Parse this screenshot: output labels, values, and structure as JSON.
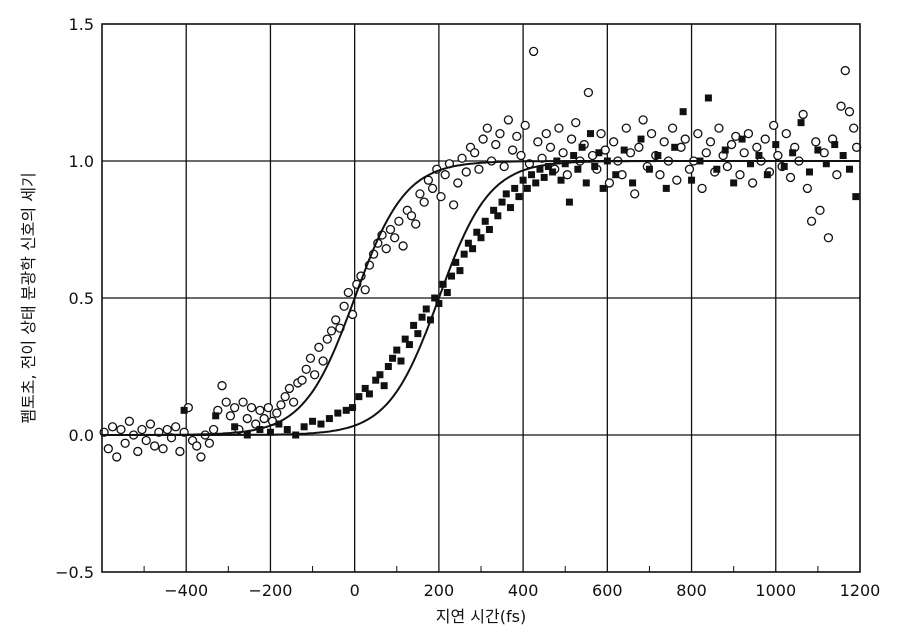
{
  "chart_data": {
    "type": "scatter",
    "title": "",
    "xlabel": "지연 시간(fs)",
    "ylabel": "펨토초, 전이 상태 분광학 신호의 세기",
    "xlim": [
      -600,
      1200
    ],
    "ylim": [
      -0.5,
      1.5
    ],
    "x_ticks": [
      -400,
      -200,
      0,
      200,
      400,
      600,
      800,
      1000,
      1200
    ],
    "y_ticks": [
      -0.5,
      0.0,
      0.5,
      1.0,
      1.5
    ],
    "x_tick_labels": [
      "−400",
      "−200",
      "0",
      "200",
      "400",
      "600",
      "800",
      "1000",
      "1200"
    ],
    "y_tick_labels": [
      "−0.5",
      "0.0",
      "0.5",
      "1.0",
      "1.5"
    ],
    "grid": true,
    "legend": "none",
    "series": [
      {
        "marker": "open-circle",
        "points": [
          [
            -595,
            0.01
          ],
          [
            -585,
            -0.05
          ],
          [
            -575,
            0.03
          ],
          [
            -565,
            -0.08
          ],
          [
            -555,
            0.02
          ],
          [
            -545,
            -0.03
          ],
          [
            -535,
            0.05
          ],
          [
            -525,
            0.0
          ],
          [
            -515,
            -0.06
          ],
          [
            -505,
            0.02
          ],
          [
            -495,
            -0.02
          ],
          [
            -485,
            0.04
          ],
          [
            -475,
            -0.04
          ],
          [
            -465,
            0.01
          ],
          [
            -455,
            -0.05
          ],
          [
            -445,
            0.02
          ],
          [
            -435,
            -0.01
          ],
          [
            -425,
            0.03
          ],
          [
            -415,
            -0.06
          ],
          [
            -405,
            0.01
          ],
          [
            -395,
            0.1
          ],
          [
            -385,
            -0.02
          ],
          [
            -375,
            -0.04
          ],
          [
            -365,
            -0.08
          ],
          [
            -355,
            0.0
          ],
          [
            -345,
            -0.03
          ],
          [
            -335,
            0.02
          ],
          [
            -325,
            0.09
          ],
          [
            -315,
            0.18
          ],
          [
            -305,
            0.12
          ],
          [
            -295,
            0.07
          ],
          [
            -285,
            0.1
          ],
          [
            -275,
            0.02
          ],
          [
            -265,
            0.12
          ],
          [
            -255,
            0.06
          ],
          [
            -245,
            0.1
          ],
          [
            -235,
            0.04
          ],
          [
            -225,
            0.09
          ],
          [
            -215,
            0.06
          ],
          [
            -205,
            0.1
          ],
          [
            -195,
            0.05
          ],
          [
            -185,
            0.08
          ],
          [
            -175,
            0.11
          ],
          [
            -165,
            0.14
          ],
          [
            -155,
            0.17
          ],
          [
            -145,
            0.12
          ],
          [
            -135,
            0.19
          ],
          [
            -125,
            0.2
          ],
          [
            -115,
            0.24
          ],
          [
            -105,
            0.28
          ],
          [
            -95,
            0.22
          ],
          [
            -85,
            0.32
          ],
          [
            -75,
            0.27
          ],
          [
            -65,
            0.35
          ],
          [
            -55,
            0.38
          ],
          [
            -45,
            0.42
          ],
          [
            -35,
            0.39
          ],
          [
            -25,
            0.47
          ],
          [
            -15,
            0.52
          ],
          [
            -5,
            0.44
          ],
          [
            5,
            0.55
          ],
          [
            15,
            0.58
          ],
          [
            25,
            0.53
          ],
          [
            35,
            0.62
          ],
          [
            45,
            0.66
          ],
          [
            55,
            0.7
          ],
          [
            65,
            0.73
          ],
          [
            75,
            0.68
          ],
          [
            85,
            0.75
          ],
          [
            95,
            0.72
          ],
          [
            105,
            0.78
          ],
          [
            115,
            0.69
          ],
          [
            125,
            0.82
          ],
          [
            135,
            0.8
          ],
          [
            145,
            0.77
          ],
          [
            155,
            0.88
          ],
          [
            165,
            0.85
          ],
          [
            175,
            0.93
          ],
          [
            185,
            0.9
          ],
          [
            195,
            0.97
          ],
          [
            205,
            0.87
          ],
          [
            215,
            0.95
          ],
          [
            225,
            0.99
          ],
          [
            235,
            0.84
          ],
          [
            245,
            0.92
          ],
          [
            255,
            1.01
          ],
          [
            265,
            0.96
          ],
          [
            275,
            1.05
          ],
          [
            285,
            1.03
          ],
          [
            295,
            0.97
          ],
          [
            305,
            1.08
          ],
          [
            315,
            1.12
          ],
          [
            325,
            1.0
          ],
          [
            335,
            1.06
          ],
          [
            345,
            1.1
          ],
          [
            355,
            0.98
          ],
          [
            365,
            1.15
          ],
          [
            375,
            1.04
          ],
          [
            385,
            1.09
          ],
          [
            395,
            1.02
          ],
          [
            405,
            1.13
          ],
          [
            415,
            0.99
          ],
          [
            425,
            1.4
          ],
          [
            435,
            1.07
          ],
          [
            445,
            1.01
          ],
          [
            455,
            1.1
          ],
          [
            465,
            1.05
          ],
          [
            475,
            0.97
          ],
          [
            485,
            1.12
          ],
          [
            495,
            1.03
          ],
          [
            505,
            0.95
          ],
          [
            515,
            1.08
          ],
          [
            525,
            1.14
          ],
          [
            535,
            1.0
          ],
          [
            545,
            1.06
          ],
          [
            555,
            1.25
          ],
          [
            565,
            1.02
          ],
          [
            575,
            0.97
          ],
          [
            585,
            1.1
          ],
          [
            595,
            1.04
          ],
          [
            605,
            0.92
          ],
          [
            615,
            1.07
          ],
          [
            625,
            1.0
          ],
          [
            635,
            0.95
          ],
          [
            645,
            1.12
          ],
          [
            655,
            1.03
          ],
          [
            665,
            0.88
          ],
          [
            675,
            1.05
          ],
          [
            685,
            1.15
          ],
          [
            695,
            0.98
          ],
          [
            705,
            1.1
          ],
          [
            715,
            1.02
          ],
          [
            725,
            0.95
          ],
          [
            735,
            1.07
          ],
          [
            745,
            1.0
          ],
          [
            755,
            1.12
          ],
          [
            765,
            0.93
          ],
          [
            775,
            1.05
          ],
          [
            785,
            1.08
          ],
          [
            795,
            0.97
          ],
          [
            805,
            1.0
          ],
          [
            815,
            1.1
          ],
          [
            825,
            0.9
          ],
          [
            835,
            1.03
          ],
          [
            845,
            1.07
          ],
          [
            855,
            0.96
          ],
          [
            865,
            1.12
          ],
          [
            875,
            1.02
          ],
          [
            885,
            0.98
          ],
          [
            895,
            1.06
          ],
          [
            905,
            1.09
          ],
          [
            915,
            0.95
          ],
          [
            925,
            1.03
          ],
          [
            935,
            1.1
          ],
          [
            945,
            0.92
          ],
          [
            955,
            1.05
          ],
          [
            965,
            1.0
          ],
          [
            975,
            1.08
          ],
          [
            985,
            0.96
          ],
          [
            995,
            1.13
          ],
          [
            1005,
            1.02
          ],
          [
            1015,
            0.98
          ],
          [
            1025,
            1.1
          ],
          [
            1035,
            0.94
          ],
          [
            1045,
            1.05
          ],
          [
            1055,
            1.0
          ],
          [
            1065,
            1.17
          ],
          [
            1075,
            0.9
          ],
          [
            1085,
            0.78
          ],
          [
            1095,
            1.07
          ],
          [
            1105,
            0.82
          ],
          [
            1115,
            1.03
          ],
          [
            1125,
            0.72
          ],
          [
            1135,
            1.08
          ],
          [
            1145,
            0.95
          ],
          [
            1155,
            1.2
          ],
          [
            1165,
            1.33
          ],
          [
            1175,
            1.18
          ],
          [
            1185,
            1.12
          ],
          [
            1192,
            1.05
          ]
        ]
      },
      {
        "marker": "filled-square",
        "points": [
          [
            -405,
            0.09
          ],
          [
            -330,
            0.07
          ],
          [
            -285,
            0.03
          ],
          [
            -255,
            0.0
          ],
          [
            -225,
            0.02
          ],
          [
            -200,
            0.01
          ],
          [
            -180,
            0.04
          ],
          [
            -160,
            0.02
          ],
          [
            -140,
            0.0
          ],
          [
            -120,
            0.03
          ],
          [
            -100,
            0.05
          ],
          [
            -80,
            0.04
          ],
          [
            -60,
            0.06
          ],
          [
            -40,
            0.08
          ],
          [
            -20,
            0.09
          ],
          [
            -5,
            0.1
          ],
          [
            10,
            0.14
          ],
          [
            25,
            0.17
          ],
          [
            35,
            0.15
          ],
          [
            50,
            0.2
          ],
          [
            60,
            0.22
          ],
          [
            70,
            0.18
          ],
          [
            80,
            0.25
          ],
          [
            90,
            0.28
          ],
          [
            100,
            0.31
          ],
          [
            110,
            0.27
          ],
          [
            120,
            0.35
          ],
          [
            130,
            0.33
          ],
          [
            140,
            0.4
          ],
          [
            150,
            0.37
          ],
          [
            160,
            0.43
          ],
          [
            170,
            0.46
          ],
          [
            180,
            0.42
          ],
          [
            190,
            0.5
          ],
          [
            200,
            0.48
          ],
          [
            210,
            0.55
          ],
          [
            220,
            0.52
          ],
          [
            230,
            0.58
          ],
          [
            240,
            0.63
          ],
          [
            250,
            0.6
          ],
          [
            260,
            0.66
          ],
          [
            270,
            0.7
          ],
          [
            280,
            0.68
          ],
          [
            290,
            0.74
          ],
          [
            300,
            0.72
          ],
          [
            310,
            0.78
          ],
          [
            320,
            0.75
          ],
          [
            330,
            0.82
          ],
          [
            340,
            0.8
          ],
          [
            350,
            0.85
          ],
          [
            360,
            0.88
          ],
          [
            370,
            0.83
          ],
          [
            380,
            0.9
          ],
          [
            390,
            0.87
          ],
          [
            400,
            0.93
          ],
          [
            410,
            0.9
          ],
          [
            420,
            0.95
          ],
          [
            430,
            0.92
          ],
          [
            440,
            0.97
          ],
          [
            450,
            0.94
          ],
          [
            460,
            0.98
          ],
          [
            470,
            0.96
          ],
          [
            480,
            1.0
          ],
          [
            490,
            0.93
          ],
          [
            500,
            0.99
          ],
          [
            510,
            0.85
          ],
          [
            520,
            1.02
          ],
          [
            530,
            0.97
          ],
          [
            540,
            1.05
          ],
          [
            550,
            0.92
          ],
          [
            560,
            1.1
          ],
          [
            570,
            0.98
          ],
          [
            580,
            1.03
          ],
          [
            590,
            0.9
          ],
          [
            600,
            1.0
          ],
          [
            620,
            0.95
          ],
          [
            640,
            1.04
          ],
          [
            660,
            0.92
          ],
          [
            680,
            1.08
          ],
          [
            700,
            0.97
          ],
          [
            720,
            1.02
          ],
          [
            740,
            0.9
          ],
          [
            760,
            1.05
          ],
          [
            780,
            1.18
          ],
          [
            800,
            0.93
          ],
          [
            820,
            1.0
          ],
          [
            840,
            1.23
          ],
          [
            860,
            0.97
          ],
          [
            880,
            1.04
          ],
          [
            900,
            0.92
          ],
          [
            920,
            1.08
          ],
          [
            940,
            0.99
          ],
          [
            960,
            1.02
          ],
          [
            980,
            0.95
          ],
          [
            1000,
            1.06
          ],
          [
            1020,
            0.98
          ],
          [
            1040,
            1.03
          ],
          [
            1060,
            1.14
          ],
          [
            1080,
            0.96
          ],
          [
            1100,
            1.04
          ],
          [
            1120,
            0.99
          ],
          [
            1140,
            1.06
          ],
          [
            1160,
            1.02
          ],
          [
            1175,
            0.97
          ],
          [
            1190,
            0.87
          ]
        ]
      },
      {
        "marker": "line",
        "function": "sigmoid",
        "midpoint": 0,
        "width": 60,
        "range": [
          -600,
          1200
        ]
      },
      {
        "marker": "line",
        "function": "sigmoid",
        "midpoint": 200,
        "width": 60,
        "range": [
          -600,
          1200
        ]
      }
    ]
  }
}
